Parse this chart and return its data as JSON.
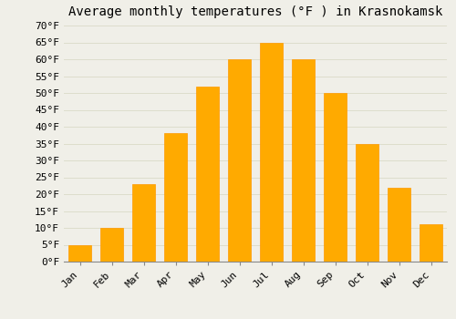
{
  "title": "Average monthly temperatures (°F ) in Krasnokamsk",
  "months": [
    "Jan",
    "Feb",
    "Mar",
    "Apr",
    "May",
    "Jun",
    "Jul",
    "Aug",
    "Sep",
    "Oct",
    "Nov",
    "Dec"
  ],
  "values": [
    5,
    10,
    23,
    38,
    52,
    60,
    65,
    60,
    50,
    35,
    22,
    11
  ],
  "bar_color": "#FFAA00",
  "bar_edge_color": "#FF9900",
  "background_color": "#F0EFE8",
  "grid_color": "#DDDDCC",
  "ylim": [
    0,
    70
  ],
  "yticks": [
    0,
    5,
    10,
    15,
    20,
    25,
    30,
    35,
    40,
    45,
    50,
    55,
    60,
    65,
    70
  ],
  "title_fontsize": 10,
  "tick_fontsize": 8,
  "font_family": "monospace",
  "bar_width": 0.7
}
